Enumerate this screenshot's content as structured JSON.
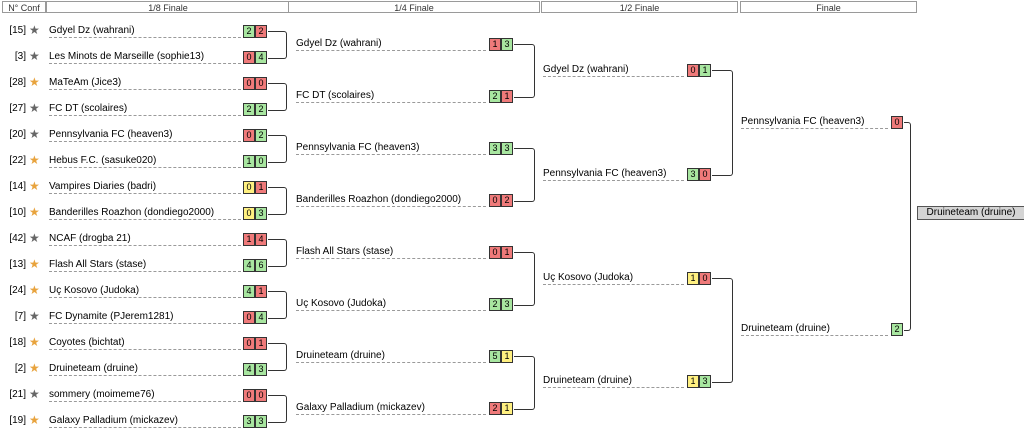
{
  "headers": [
    "N° Conf",
    "1/8 Finale",
    "1/4 Finale",
    "1/2 Finale",
    "Finale"
  ],
  "colors": {
    "win": "#a8e6a0",
    "loss": "#ef7a7a",
    "draw": "#fff080",
    "star_gold": "#e8a33d",
    "star_gray": "#666666"
  },
  "round16": [
    {
      "seed": "[15]",
      "star": "gray",
      "team": "Gdyel Dz (wahrani)",
      "s1": "2",
      "c1": "g",
      "s2": "2",
      "c2": "r"
    },
    {
      "seed": "[3]",
      "star": "gray",
      "team": "Les Minots de Marseille (sophie13)",
      "s1": "0",
      "c1": "r",
      "s2": "4",
      "c2": "g"
    },
    {
      "seed": "[28]",
      "star": "gold",
      "team": "MaTeAm (Jice3)",
      "s1": "0",
      "c1": "r",
      "s2": "0",
      "c2": "r"
    },
    {
      "seed": "[27]",
      "star": "gray",
      "team": "FC DT (scolaires)",
      "s1": "2",
      "c1": "g",
      "s2": "2",
      "c2": "g"
    },
    {
      "seed": "[20]",
      "star": "gray",
      "team": "Pennsylvania FC (heaven3)",
      "s1": "0",
      "c1": "r",
      "s2": "2",
      "c2": "g"
    },
    {
      "seed": "[22]",
      "star": "gold",
      "team": "Hebus F.C. (sasuke020)",
      "s1": "1",
      "c1": "g",
      "s2": "0",
      "c2": "g"
    },
    {
      "seed": "[14]",
      "star": "gold",
      "team": "Vampires Diaries (badri)",
      "s1": "0",
      "c1": "y",
      "s2": "1",
      "c2": "r"
    },
    {
      "seed": "[10]",
      "star": "gold",
      "team": "Banderilles Roazhon (dondiego2000)",
      "s1": "0",
      "c1": "y",
      "s2": "3",
      "c2": "g"
    },
    {
      "seed": "[42]",
      "star": "gray",
      "team": "NCAF (drogba 21)",
      "s1": "1",
      "c1": "r",
      "s2": "4",
      "c2": "r"
    },
    {
      "seed": "[13]",
      "star": "gold",
      "team": "Flash All Stars (stase)",
      "s1": "4",
      "c1": "g",
      "s2": "6",
      "c2": "g"
    },
    {
      "seed": "[24]",
      "star": "gold",
      "team": "Uç Kosovo (Judoka)",
      "s1": "4",
      "c1": "g",
      "s2": "1",
      "c2": "r"
    },
    {
      "seed": "[7]",
      "star": "gray",
      "team": "FC Dynamite (PJerem1281)",
      "s1": "0",
      "c1": "r",
      "s2": "4",
      "c2": "g"
    },
    {
      "seed": "[18]",
      "star": "gold",
      "team": "Coyotes (bichtat)",
      "s1": "0",
      "c1": "r",
      "s2": "1",
      "c2": "r"
    },
    {
      "seed": "[2]",
      "star": "gold",
      "team": "Druineteam (druine)",
      "s1": "4",
      "c1": "g",
      "s2": "3",
      "c2": "g"
    },
    {
      "seed": "[21]",
      "star": "gray",
      "team": "sommery (moimeme76)",
      "s1": "0",
      "c1": "r",
      "s2": "0",
      "c2": "r"
    },
    {
      "seed": "[19]",
      "star": "gold",
      "team": "Galaxy Palladium (mickazev)",
      "s1": "3",
      "c1": "g",
      "s2": "3",
      "c2": "g"
    }
  ],
  "quarter": [
    {
      "team": "Gdyel Dz (wahrani)",
      "s1": "1",
      "c1": "r",
      "s2": "3",
      "c2": "g"
    },
    {
      "team": "FC DT (scolaires)",
      "s1": "2",
      "c1": "g",
      "s2": "1",
      "c2": "r"
    },
    {
      "team": "Pennsylvania FC (heaven3)",
      "s1": "3",
      "c1": "g",
      "s2": "3",
      "c2": "g"
    },
    {
      "team": "Banderilles Roazhon (dondiego2000)",
      "s1": "0",
      "c1": "r",
      "s2": "2",
      "c2": "r"
    },
    {
      "team": "Flash All Stars (stase)",
      "s1": "0",
      "c1": "r",
      "s2": "1",
      "c2": "r"
    },
    {
      "team": "Uç Kosovo (Judoka)",
      "s1": "2",
      "c1": "g",
      "s2": "3",
      "c2": "g"
    },
    {
      "team": "Druineteam (druine)",
      "s1": "5",
      "c1": "g",
      "s2": "1",
      "c2": "y"
    },
    {
      "team": "Galaxy Palladium (mickazev)",
      "s1": "2",
      "c1": "r",
      "s2": "1",
      "c2": "y"
    }
  ],
  "semi": [
    {
      "team": "Gdyel Dz (wahrani)",
      "s1": "0",
      "c1": "r",
      "s2": "1",
      "c2": "g"
    },
    {
      "team": "Pennsylvania FC (heaven3)",
      "s1": "3",
      "c1": "g",
      "s2": "0",
      "c2": "r"
    },
    {
      "team": "Uç Kosovo (Judoka)",
      "s1": "1",
      "c1": "y",
      "s2": "0",
      "c2": "r"
    },
    {
      "team": "Druineteam (druine)",
      "s1": "1",
      "c1": "y",
      "s2": "3",
      "c2": "g"
    }
  ],
  "final": [
    {
      "team": "Pennsylvania FC (heaven3)",
      "s1": "0",
      "c1": "r"
    },
    {
      "team": "Druineteam (druine)",
      "s1": "2",
      "c1": "g"
    }
  ],
  "champion": "Druineteam (druine)"
}
